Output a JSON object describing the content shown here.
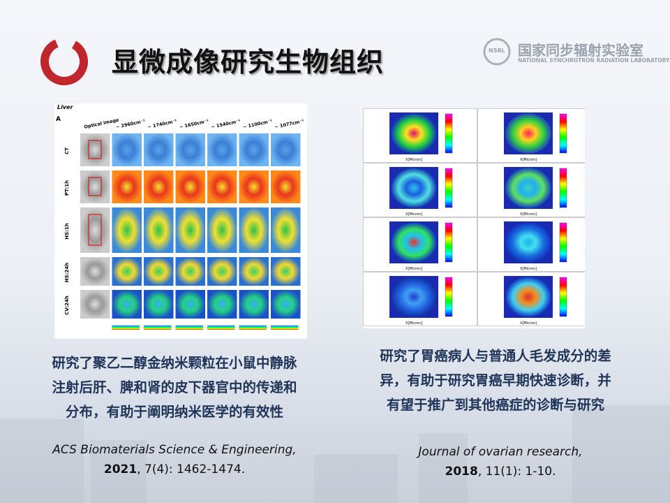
{
  "header": {
    "title": "显微成像研究生物组织",
    "lab_logo": "NSRL",
    "lab_name_cn": "国家同步辐射实验室",
    "lab_name_en": "NATIONAL SYNCHROTRON RADIATION LABORATORY"
  },
  "left": {
    "figure": {
      "organ": "Liver",
      "letter": "A",
      "column_headers": [
        "Optical image",
        "~ 2960cm⁻¹",
        "~ 1740cm⁻¹",
        "~ 1650cm⁻¹",
        "~ 1540cm⁻¹",
        "~ 1100cm⁻¹",
        "~ 1077cm⁻¹"
      ],
      "row_labels": [
        "CT",
        "PT:1h",
        "HS:1h",
        "HS:24h",
        "CV:24h"
      ]
    },
    "caption_lines": [
      "研究了聚乙二醇金纳米颗粒在小鼠中静脉",
      "注射后肝、脾和肾的皮下器官中的传递和",
      "分布，有助于阐明纳米医学的有效性"
    ],
    "citation": {
      "journal": "ACS Biomaterials Science & Engineering,",
      "year": "2021",
      "rest": ", 7(4): 1462-1474."
    }
  },
  "right": {
    "figure": {
      "x_axis_label": "X[Micron]"
    },
    "caption_lines": [
      "研究了胃癌病人与普通人毛发成分的差",
      "异，有助于研究胃癌早期快速诊断，并",
      "有望于推广到其他癌症的诊断与研究"
    ],
    "citation": {
      "journal": "Journal of ovarian research,",
      "year": "2018",
      "rest": ", 11(1): 1-10."
    }
  }
}
